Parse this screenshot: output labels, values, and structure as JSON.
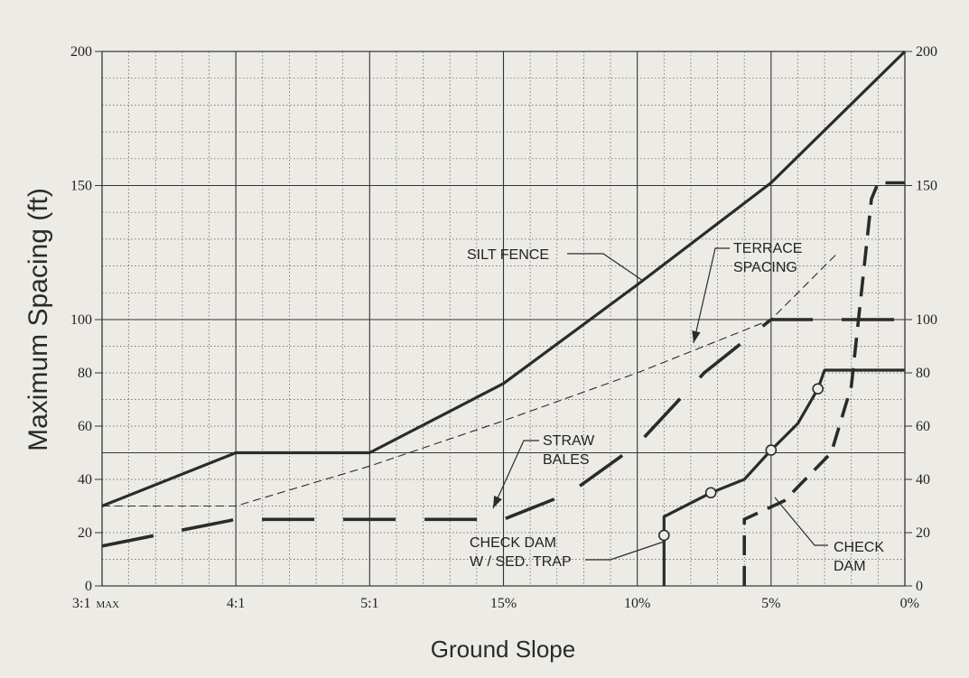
{
  "chart_data": {
    "type": "line",
    "xlabel": "Ground Slope",
    "ylabel": "Maximum Spacing (ft)",
    "x_categories": [
      "3:1",
      "4:1",
      "5:1",
      "15%",
      "10%",
      "5%",
      "0%"
    ],
    "x_first_suffix": "MAX",
    "y_ticks": [
      0,
      20,
      40,
      60,
      80,
      100,
      150,
      200
    ],
    "ylim": [
      0,
      200
    ],
    "grid": true,
    "series": [
      {
        "name": "SILT FENCE",
        "style": "solid-heavy",
        "points": [
          [
            0,
            30
          ],
          [
            1,
            50
          ],
          [
            2,
            50
          ],
          [
            3,
            76
          ],
          [
            4,
            113
          ],
          [
            5,
            151
          ],
          [
            6,
            200
          ]
        ]
      },
      {
        "name": "TERRACE SPACING",
        "style": "dashed-thin",
        "points": [
          [
            0,
            30
          ],
          [
            1,
            30
          ],
          [
            2,
            45
          ],
          [
            3,
            62
          ],
          [
            4,
            80
          ],
          [
            5,
            100
          ],
          [
            5.5,
            125
          ]
        ]
      },
      {
        "name": "STRAW BALES",
        "style": "dashed-heavy",
        "points": [
          [
            0,
            15
          ],
          [
            0.5,
            20
          ],
          [
            1,
            25
          ],
          [
            2,
            25
          ],
          [
            3,
            25
          ],
          [
            3.5,
            35
          ],
          [
            4,
            53
          ],
          [
            4.5,
            80
          ],
          [
            5,
            100
          ],
          [
            5.4,
            100
          ],
          [
            6,
            100
          ]
        ]
      },
      {
        "name": "CHECK DAM W/ SED. TRAP",
        "style": "solid-heavy",
        "points": [
          [
            4.2,
            0
          ],
          [
            4.2,
            26
          ],
          [
            4.55,
            35
          ],
          [
            4.8,
            40
          ],
          [
            5,
            51
          ],
          [
            5.2,
            61
          ],
          [
            5.35,
            74
          ],
          [
            5.4,
            81
          ],
          [
            6,
            81
          ]
        ],
        "markers": [
          [
            4.2,
            19
          ],
          [
            4.55,
            35
          ],
          [
            5,
            51
          ],
          [
            5.35,
            74
          ]
        ]
      },
      {
        "name": "CHECK DAM",
        "style": "dashed-heavy",
        "points": [
          [
            4.8,
            0
          ],
          [
            4.8,
            25
          ],
          [
            5.1,
            32
          ],
          [
            5.45,
            50
          ],
          [
            5.6,
            75
          ],
          [
            5.75,
            145
          ],
          [
            5.8,
            151
          ],
          [
            6,
            151
          ]
        ]
      }
    ],
    "annotations": [
      {
        "lines": [
          "SILT FENCE"
        ],
        "target_series": "SILT FENCE"
      },
      {
        "lines": [
          "TERRACE",
          "SPACING"
        ],
        "target_series": "TERRACE SPACING"
      },
      {
        "lines": [
          "STRAW",
          "BALES"
        ],
        "target_series": "STRAW BALES"
      },
      {
        "lines": [
          "CHECK DAM",
          "W / SED. TRAP"
        ],
        "target_series": "CHECK DAM W/ SED. TRAP"
      },
      {
        "lines": [
          "CHECK",
          "DAM"
        ],
        "target_series": "CHECK DAM"
      }
    ]
  }
}
